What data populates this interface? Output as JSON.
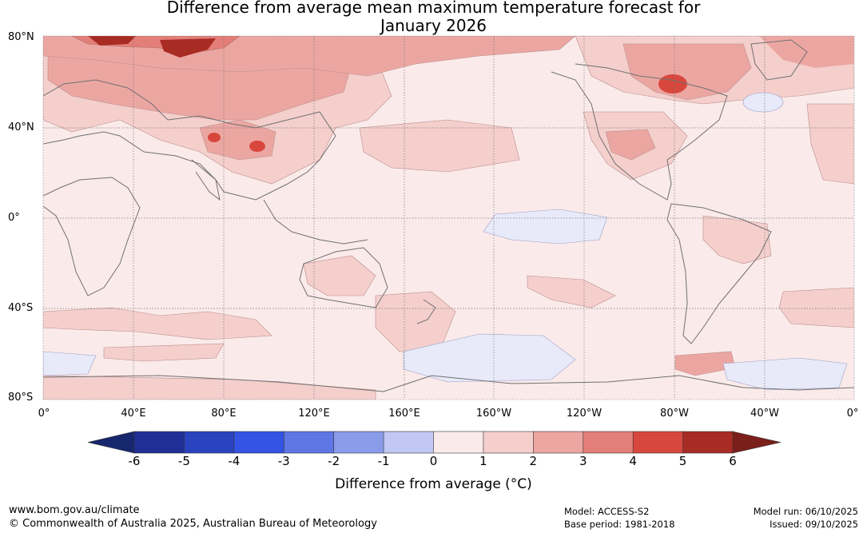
{
  "title": {
    "line1": "Difference from average mean maximum temperature forecast for",
    "line2": "January 2026"
  },
  "map": {
    "lat_labels": [
      "80°N",
      "40°N",
      "0°",
      "40°S",
      "80°S"
    ],
    "lon_labels": [
      "0°",
      "40°E",
      "80°E",
      "120°E",
      "160°E",
      "160°W",
      "120°W",
      "80°W",
      "40°W",
      "0°"
    ]
  },
  "colorbar": {
    "ticks": [
      "-6",
      "-5",
      "-4",
      "-3",
      "-2",
      "-1",
      "0",
      "1",
      "2",
      "3",
      "4",
      "5",
      "6"
    ],
    "colors": [
      "#1f2f96",
      "#2a43bf",
      "#3353e4",
      "#5e77e4",
      "#8a9bea",
      "#c1c8f3",
      "#e8eafa",
      "#fbeaea",
      "#f4cfcc",
      "#eca6a2",
      "#e47e78",
      "#d8473d",
      "#a82b24"
    ],
    "under_color": "#17276e",
    "over_color": "#7a1f1a",
    "label": "Difference from average (°C)"
  },
  "footer": {
    "url": "www.bom.gov.au/climate",
    "copyright": "© Commonwealth of Australia 2025, Australian Bureau of Meteorology",
    "model": "Model: ACCESS-S2",
    "base_period": "Base period: 1981-2018",
    "model_run": "Model run: 06/10/2025",
    "issued": "Issued: 09/10/2025"
  }
}
